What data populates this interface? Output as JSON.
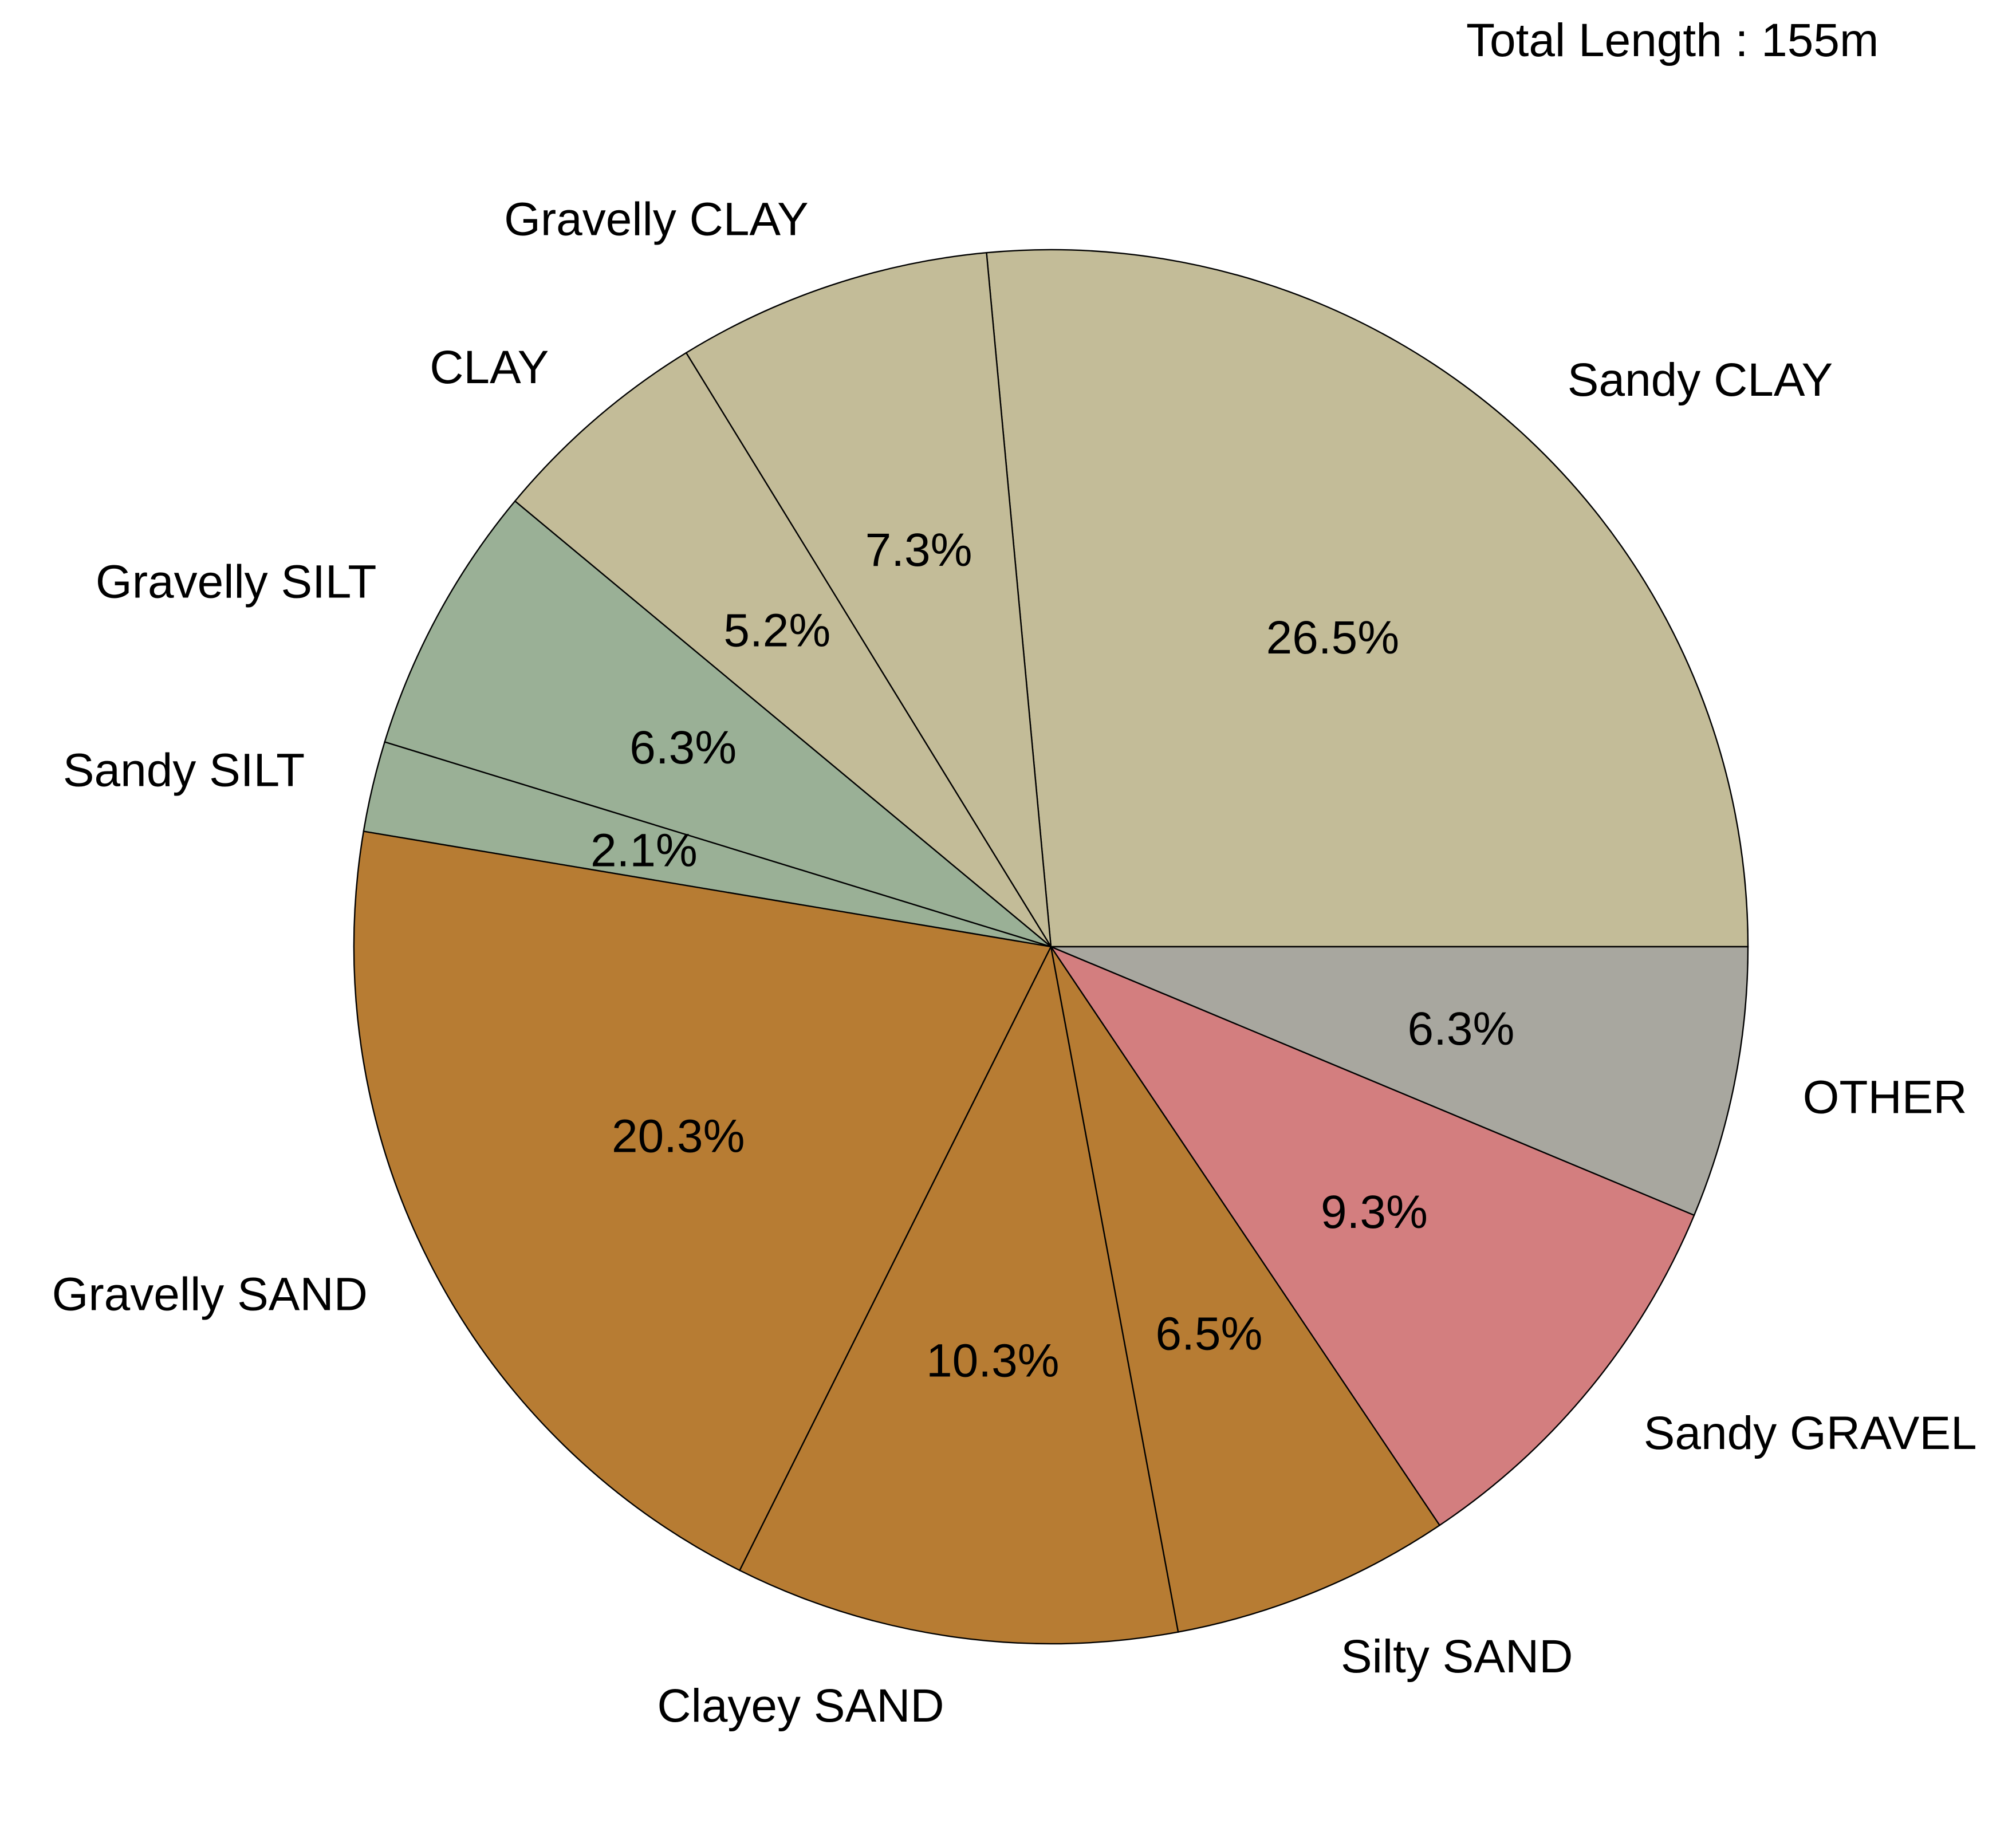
{
  "annotation": "Total Length : 155m",
  "chart_data": {
    "type": "pie",
    "title": "",
    "start_angle_deg": 0,
    "direction": "counterclockwise",
    "slices": [
      {
        "label": "Sandy CLAY",
        "value": 26.5,
        "pct_label": "26.5%",
        "color": "#c3bc98"
      },
      {
        "label": "Gravelly CLAY",
        "value": 7.3,
        "pct_label": "7.3%",
        "color": "#c3bc98"
      },
      {
        "label": "CLAY",
        "value": 5.2,
        "pct_label": "5.2%",
        "color": "#c3bc98"
      },
      {
        "label": "Gravelly SILT",
        "value": 6.3,
        "pct_label": "6.3%",
        "color": "#9ab096"
      },
      {
        "label": "Sandy SILT",
        "value": 2.1,
        "pct_label": "2.1%",
        "color": "#9ab096"
      },
      {
        "label": "Gravelly SAND",
        "value": 20.3,
        "pct_label": "20.3%",
        "color": "#b77c33"
      },
      {
        "label": "Clayey SAND",
        "value": 10.3,
        "pct_label": "10.3%",
        "color": "#b77c33"
      },
      {
        "label": "Silty SAND",
        "value": 6.5,
        "pct_label": "6.5%",
        "color": "#b77c33"
      },
      {
        "label": "Sandy GRAVEL",
        "value": 9.3,
        "pct_label": "9.3%",
        "color": "#d37e7f"
      },
      {
        "label": "OTHER",
        "value": 6.3,
        "pct_label": "6.3%",
        "color": "#a8a79f"
      }
    ]
  }
}
